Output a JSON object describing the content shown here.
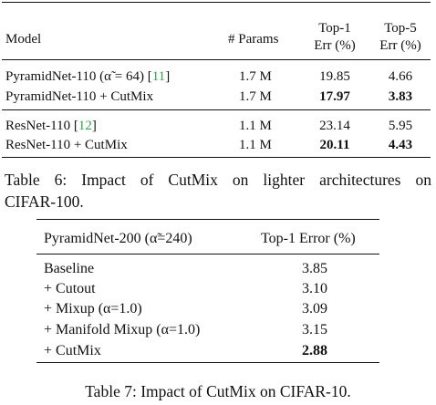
{
  "table6": {
    "headers": {
      "model": "Model",
      "params": "# Params",
      "top1_line1": "Top-1",
      "top1_line2": "Err (%)",
      "top5_line1": "Top-5",
      "top5_line2": "Err (%)"
    },
    "rows": [
      {
        "model_text": "PyramidNet-110 (α̃ = 64) [",
        "cite": "11",
        "model_suffix": "]",
        "params": "1.7 M",
        "top1": "19.85",
        "top5": "4.66",
        "bold": false
      },
      {
        "model_text": "PyramidNet-110 + CutMix",
        "cite": "",
        "model_suffix": "",
        "params": "1.7 M",
        "top1": "17.97",
        "top5": "3.83",
        "bold": true
      },
      {
        "model_text": "ResNet-110 [",
        "cite": "12",
        "model_suffix": "]",
        "params": "1.1 M",
        "top1": "23.14",
        "top5": "5.95",
        "bold": false
      },
      {
        "model_text": "ResNet-110 + CutMix",
        "cite": "",
        "model_suffix": "",
        "params": "1.1 M",
        "top1": "20.11",
        "top5": "4.43",
        "bold": true
      }
    ],
    "caption_line1": "Table 6: Impact of CutMix on lighter architectures on",
    "caption_line2": "CIFAR-100."
  },
  "table7": {
    "headers": {
      "model": "PyramidNet-200 (α̃=240)",
      "error": "Top-1 Error (%)"
    },
    "rows": [
      {
        "method": "Baseline",
        "error": "3.85",
        "bold": false
      },
      {
        "method": "+ Cutout",
        "error": "3.10",
        "bold": false
      },
      {
        "method": "+ Mixup (α=1.0)",
        "error": "3.09",
        "bold": false
      },
      {
        "method": "+ Manifold Mixup (α=1.0)",
        "error": "3.15",
        "bold": false
      },
      {
        "method": "+ CutMix",
        "error": "2.88",
        "bold": true
      }
    ],
    "caption": "Table 7: Impact of CutMix on CIFAR-10."
  }
}
